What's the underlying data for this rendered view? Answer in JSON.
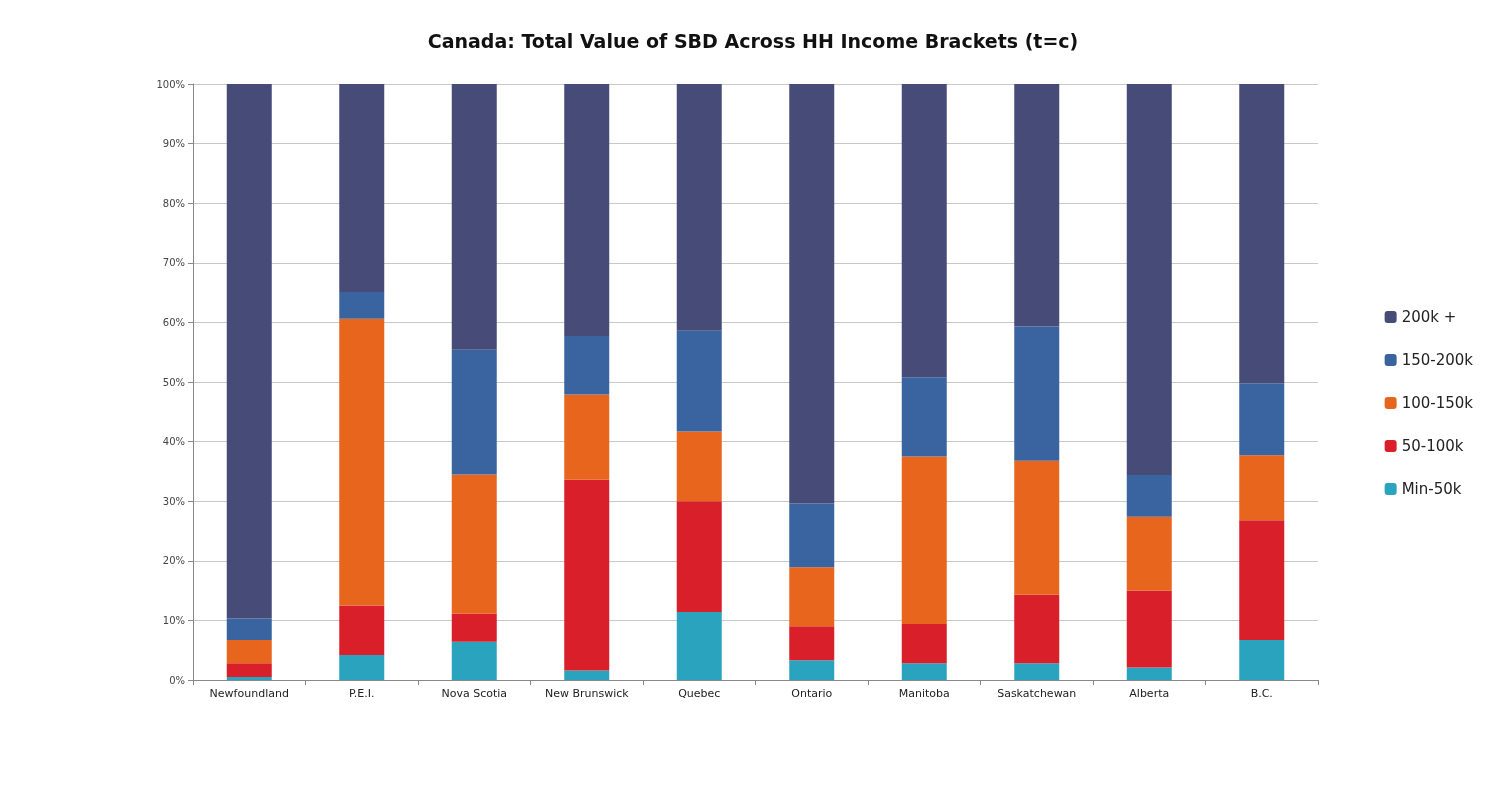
{
  "chart_data": {
    "type": "bar",
    "title": "Canada: Total Value of SBD Across HH Income Brackets (t=c)",
    "categories": [
      "Newfoundland",
      "P.E.I.",
      "Nova Scotia",
      "New Brunswick",
      "Quebec",
      "Ontario",
      "Manitoba",
      "Saskatchewan",
      "Alberta",
      "B.C."
    ],
    "stacked": true,
    "series": [
      {
        "name": "Min-50k",
        "color": "#2aa3bf",
        "values": [
          0.5,
          4.2,
          6.4,
          1.6,
          11.4,
          3.3,
          2.8,
          2.8,
          2.1,
          6.7
        ]
      },
      {
        "name": "50-100k",
        "color": "#d91f2a",
        "values": [
          2.3,
          8.3,
          4.7,
          32.0,
          18.6,
          5.7,
          6.6,
          11.5,
          12.9,
          20.1
        ]
      },
      {
        "name": "100-150k",
        "color": "#e8651e",
        "values": [
          3.9,
          48.1,
          23.4,
          14.3,
          11.7,
          9.9,
          28.1,
          22.5,
          12.4,
          10.9
        ]
      },
      {
        "name": "150-200k",
        "color": "#3a64a0",
        "values": [
          3.6,
          4.5,
          20.9,
          9.8,
          16.9,
          10.7,
          13.3,
          22.5,
          7.0,
          12.1
        ]
      },
      {
        "name": "200k +",
        "color": "#474b78",
        "values": [
          89.7,
          34.9,
          44.6,
          42.3,
          41.4,
          70.4,
          49.2,
          40.7,
          65.6,
          50.2
        ]
      }
    ],
    "ylim": [
      0,
      100
    ],
    "yticks": [
      {
        "value": 0,
        "label": "0%"
      },
      {
        "value": 10,
        "label": "10%"
      },
      {
        "value": 20,
        "label": "20%"
      },
      {
        "value": 30,
        "label": "30%"
      },
      {
        "value": 40,
        "label": "40%"
      },
      {
        "value": 50,
        "label": "50%"
      },
      {
        "value": 60,
        "label": "60%"
      },
      {
        "value": 70,
        "label": "70%"
      },
      {
        "value": 80,
        "label": "80%"
      },
      {
        "value": 90,
        "label": "90%"
      },
      {
        "value": 100,
        "label": "100%"
      }
    ],
    "grid": "y",
    "legend": "right"
  }
}
